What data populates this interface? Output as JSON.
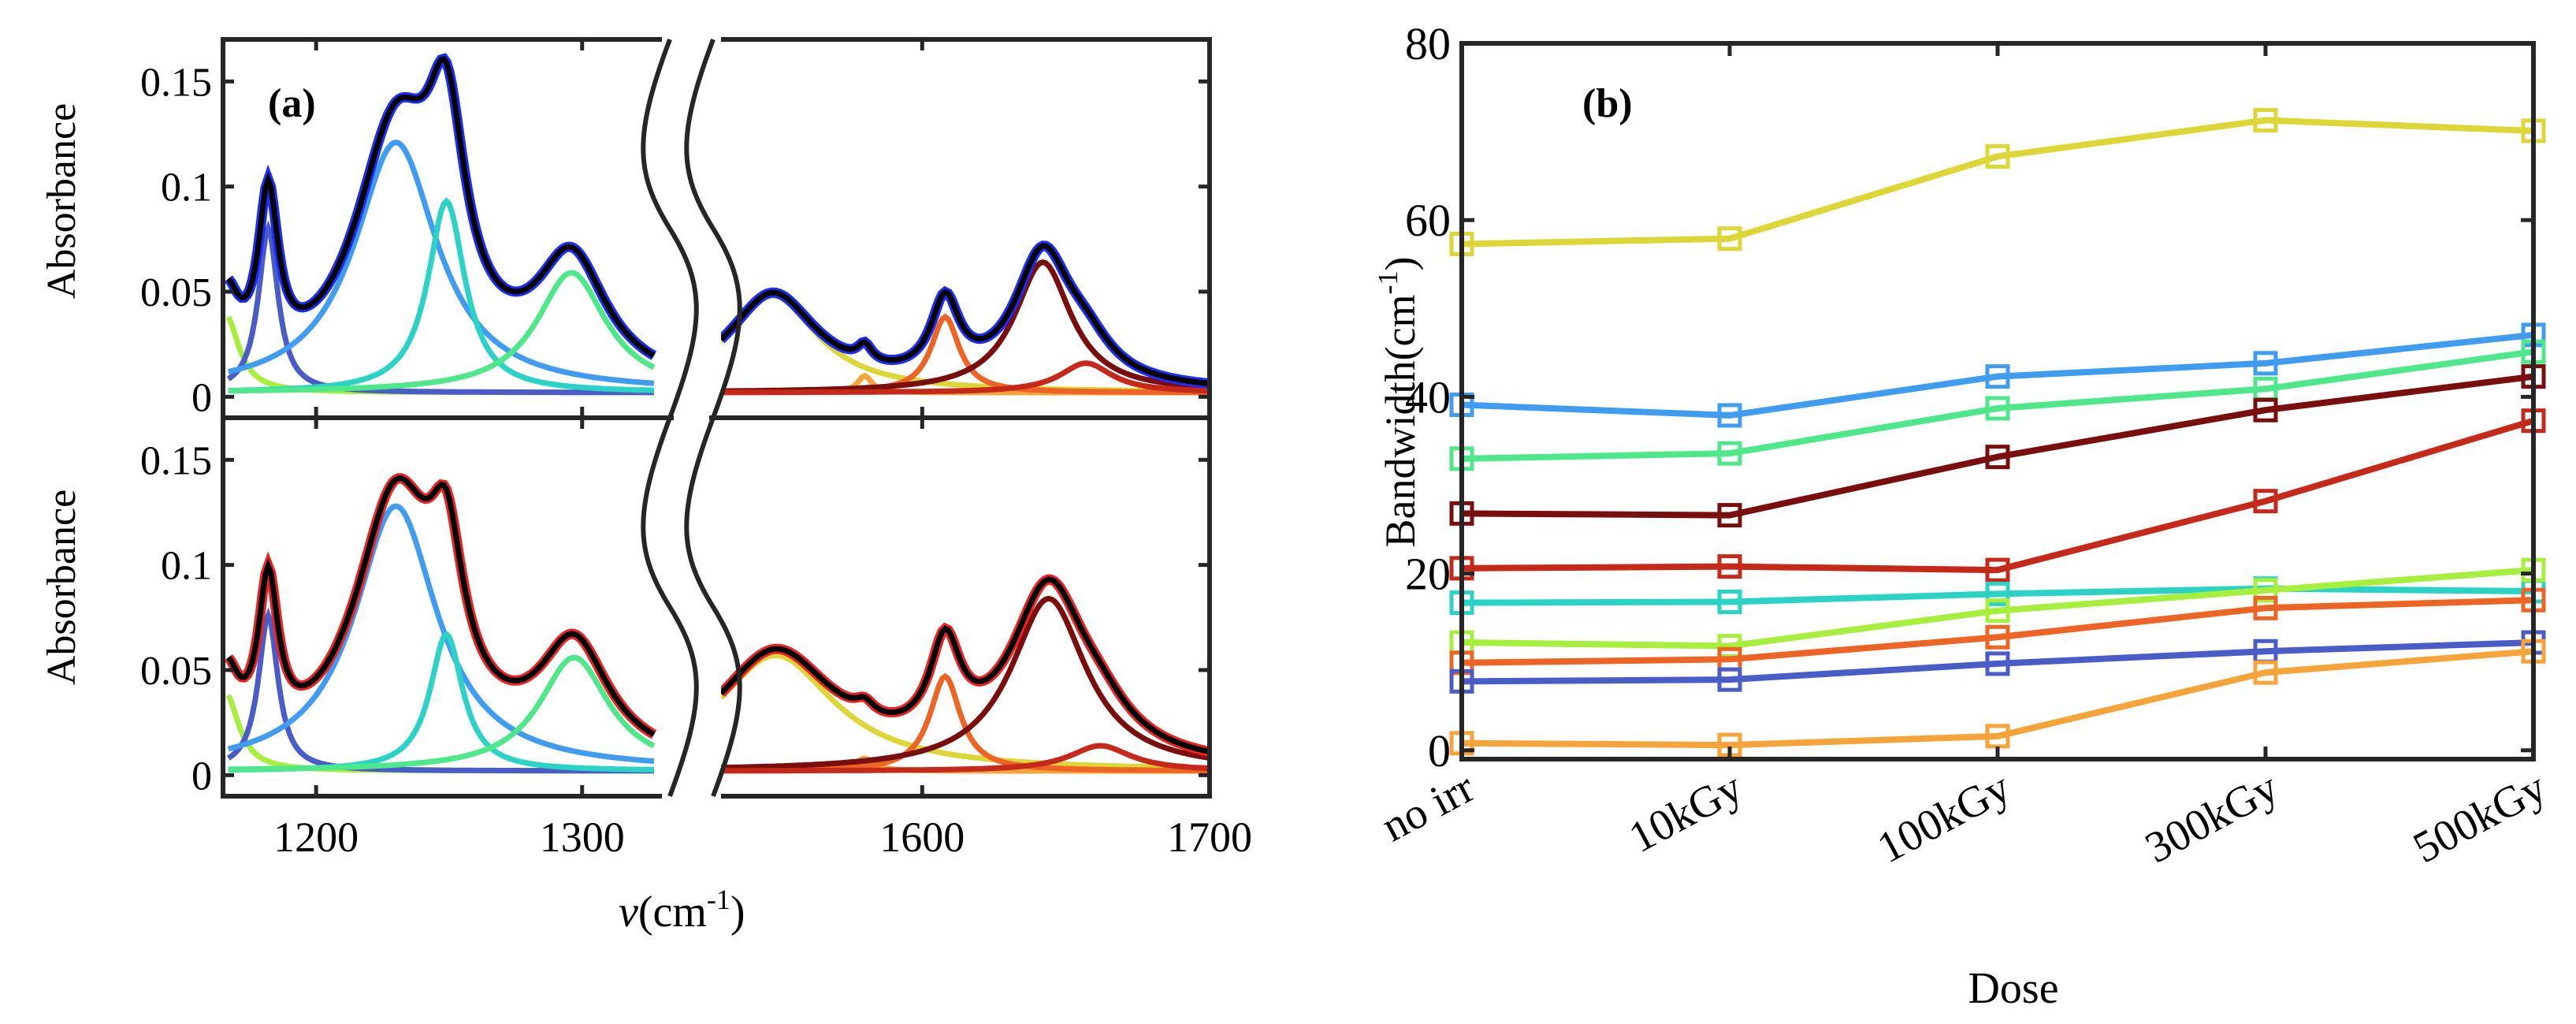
{
  "figure": {
    "panel_a_label": "(a)",
    "panel_b_label": "(b)",
    "colors": {
      "blue_dark": "#4a5cc8",
      "blue": "#3f9cf0",
      "cyan": "#2ad3c6",
      "green": "#4ee88a",
      "lime": "#a6ef3c",
      "yellow": "#dcd636",
      "orange_light": "#f6a33a",
      "orange": "#ee6424",
      "red": "#c6281a",
      "dark_red": "#7a0d0d",
      "data_blue": "#1a2cff",
      "data_red": "#ee2222",
      "fit": "#000000"
    }
  },
  "chart_data": [
    {
      "panel": "(a)",
      "type": "line",
      "title": "",
      "xlabel_symbol": "ν",
      "xlabel_unit_base": "(cm",
      "xlabel_unit_sup": "-1",
      "xlabel_unit_close": ")",
      "ylabel": "Absorbance",
      "xlim_left": [
        1165,
        1330
      ],
      "xlim_right": [
        1530,
        1700
      ],
      "ylim": [
        -0.01,
        0.17
      ],
      "xticks_left": [
        "1200",
        "1300"
      ],
      "xticks_right": [
        "1600",
        "1700"
      ],
      "yticks": [
        "0",
        "0.05",
        "0.1",
        "0.15"
      ],
      "ytick_values": [
        0,
        0.05,
        0.1,
        0.15
      ],
      "subplots": [
        {
          "name": "top",
          "data_color": "#1a2cff",
          "baseline": 0.002,
          "left_components": [
            {
              "name": "lime",
              "center": 1166,
              "amplitude": 0.037,
              "width": 12
            },
            {
              "name": "blue_dark",
              "center": 1182,
              "amplitude": 0.078,
              "width": 9
            },
            {
              "name": "blue",
              "center": 1230,
              "amplitude": 0.119,
              "width": 38
            },
            {
              "name": "cyan",
              "center": 1249,
              "amplitude": 0.091,
              "width": 17
            },
            {
              "name": "green",
              "center": 1296,
              "amplitude": 0.057,
              "width": 32
            }
          ],
          "right_components": [
            {
              "name": "yellow",
              "center": 1548,
              "amplitude": 0.046,
              "width": 38
            },
            {
              "name": "orange_light",
              "center": 1580,
              "amplitude": 0.008,
              "width": 6
            },
            {
              "name": "orange",
              "center": 1608,
              "amplitude": 0.036,
              "width": 12
            },
            {
              "name": "dark_red",
              "center": 1642,
              "amplitude": 0.062,
              "width": 24
            },
            {
              "name": "red",
              "center": 1657,
              "amplitude": 0.014,
              "width": 22
            }
          ]
        },
        {
          "name": "bottom",
          "data_color": "#ee2222",
          "baseline": 0.002,
          "left_components": [
            {
              "name": "lime",
              "center": 1166,
              "amplitude": 0.037,
              "width": 12
            },
            {
              "name": "blue_dark",
              "center": 1182,
              "amplitude": 0.074,
              "width": 9
            },
            {
              "name": "blue",
              "center": 1230,
              "amplitude": 0.126,
              "width": 38
            },
            {
              "name": "cyan",
              "center": 1249,
              "amplitude": 0.065,
              "width": 15
            },
            {
              "name": "green",
              "center": 1297,
              "amplitude": 0.054,
              "width": 32
            }
          ],
          "right_components": [
            {
              "name": "yellow",
              "center": 1549,
              "amplitude": 0.055,
              "width": 50
            },
            {
              "name": "orange_light",
              "center": 1580,
              "amplitude": 0.006,
              "width": 8
            },
            {
              "name": "orange",
              "center": 1608,
              "amplitude": 0.045,
              "width": 13
            },
            {
              "name": "dark_red",
              "center": 1644,
              "amplitude": 0.082,
              "width": 32
            },
            {
              "name": "red",
              "center": 1662,
              "amplitude": 0.012,
              "width": 26
            }
          ]
        }
      ]
    },
    {
      "panel": "(b)",
      "type": "line",
      "title": "",
      "xlabel": "Dose",
      "ylabel_base": "Bandwidth(cm",
      "ylabel_sup": "-1",
      "ylabel_close": ")",
      "categories": [
        "no irr",
        "10kGy",
        "100kGy",
        "300kGy",
        "500kGy"
      ],
      "ylim": [
        -1,
        80
      ],
      "yticks": [
        "0",
        "20",
        "40",
        "60",
        "80"
      ],
      "ytick_values": [
        0,
        20,
        40,
        60,
        80
      ],
      "marker": "square",
      "series": [
        {
          "name": "yellow",
          "color": "#dcd636",
          "values": [
            57.3,
            57.9,
            67.2,
            71.3,
            70.1
          ]
        },
        {
          "name": "blue",
          "color": "#3f9cf0",
          "values": [
            39.1,
            37.9,
            42.3,
            43.8,
            47.0
          ]
        },
        {
          "name": "green",
          "color": "#4ee88a",
          "values": [
            33.0,
            33.6,
            38.7,
            40.9,
            45.1
          ]
        },
        {
          "name": "dark_red",
          "color": "#7a0d0d",
          "values": [
            26.8,
            26.6,
            33.2,
            38.5,
            42.3
          ]
        },
        {
          "name": "red",
          "color": "#c6281a",
          "values": [
            20.6,
            20.8,
            20.4,
            28.2,
            37.3
          ]
        },
        {
          "name": "cyan",
          "color": "#2ad3c6",
          "values": [
            16.7,
            16.8,
            17.7,
            18.3,
            18.0
          ]
        },
        {
          "name": "lime",
          "color": "#a6ef3c",
          "values": [
            12.2,
            11.8,
            15.8,
            18.1,
            20.4
          ]
        },
        {
          "name": "orange",
          "color": "#ee6424",
          "values": [
            9.9,
            10.3,
            12.8,
            16.1,
            17.0
          ]
        },
        {
          "name": "blue_dark",
          "color": "#4a5cc8",
          "values": [
            7.8,
            8.0,
            9.8,
            11.2,
            12.2
          ]
        },
        {
          "name": "orange_light",
          "color": "#f6a33a",
          "values": [
            0.8,
            0.6,
            1.6,
            8.8,
            11.2
          ]
        }
      ]
    }
  ]
}
